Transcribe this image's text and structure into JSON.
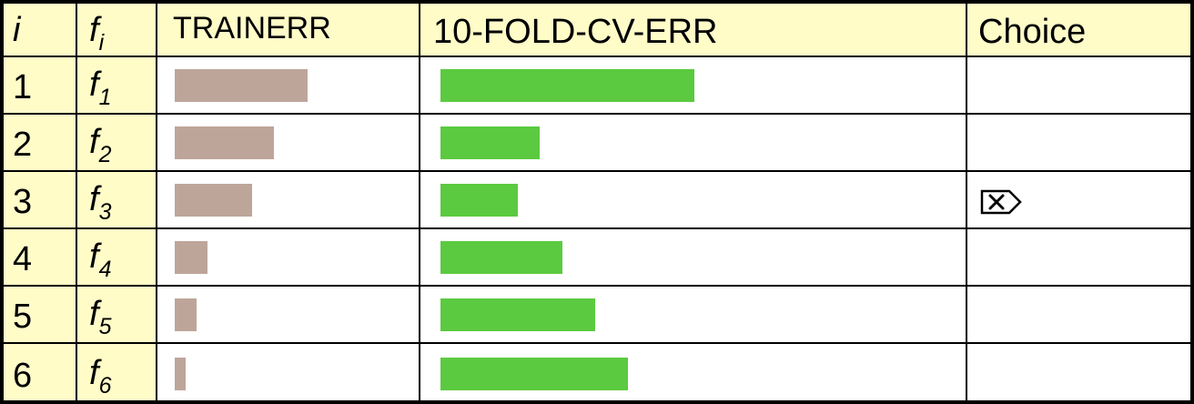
{
  "colors": {
    "header_fill": "#fffcc8",
    "index_fill": "#fffcc8",
    "train_bar": "#bea59a",
    "cv_bar": "#5bca40",
    "grid": "#000000"
  },
  "table": {
    "headers": {
      "i": "i",
      "f": "f",
      "f_sub": "i",
      "train": "TRAINERR",
      "cv": "10-FOLD-CV-ERR",
      "choice": "Choice"
    },
    "rows": [
      {
        "i": "1",
        "f": "f",
        "f_sub": "1",
        "chosen": false
      },
      {
        "i": "2",
        "f": "f",
        "f_sub": "2",
        "chosen": false
      },
      {
        "i": "3",
        "f": "f",
        "f_sub": "3",
        "chosen": true
      },
      {
        "i": "4",
        "f": "f",
        "f_sub": "4",
        "chosen": false
      },
      {
        "i": "5",
        "f": "f",
        "f_sub": "5",
        "chosen": false
      },
      {
        "i": "6",
        "f": "f",
        "f_sub": "6",
        "chosen": false
      }
    ],
    "choice_icon": "checkbox-x-icon"
  },
  "chart_data": {
    "type": "bar",
    "categories": [
      "1",
      "2",
      "3",
      "4",
      "5",
      "6"
    ],
    "series": [
      {
        "name": "TRAINERR",
        "values": [
          146,
          109,
          85,
          36,
          24,
          12
        ]
      },
      {
        "name": "10-FOLD-CV-ERR",
        "values": [
          279,
          109,
          85,
          134,
          170,
          206
        ]
      }
    ],
    "ylim": [
      0,
      300
    ],
    "grid": false
  }
}
